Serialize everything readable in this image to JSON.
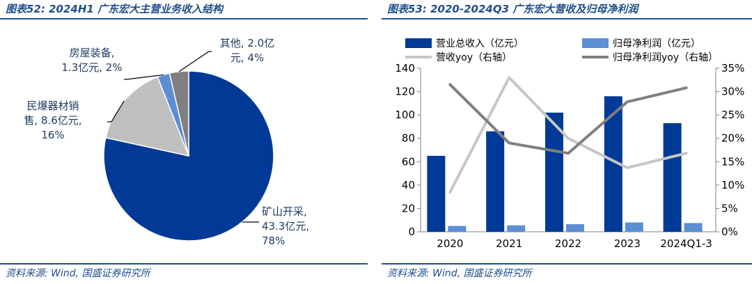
{
  "charts": {
    "left": {
      "title": "图表52: 2024H1 广东宏大主营业务收入结构",
      "source": "资料来源: Wind, 国盛证券研究所"
    },
    "right": {
      "title": "图表53: 2020-2024Q3 广东宏大营收及归母净利润",
      "source": "资料来源: Wind, 国盛证券研究所"
    }
  },
  "chart_data": [
    {
      "type": "pie",
      "title": "2024H1 广东宏大主营业务收入结构",
      "unit": "亿元",
      "slices": [
        {
          "name": "矿山开采",
          "value": 43.3,
          "percent": 78,
          "color": "#003a96",
          "label_lines": [
            "矿山开采,",
            "43.3亿元,",
            "78%"
          ]
        },
        {
          "name": "民爆器材销售",
          "value": 8.6,
          "percent": 16,
          "color": "#bfbfbf",
          "label_lines": [
            "民爆器材销",
            "售, 8.6亿元,",
            "16%"
          ]
        },
        {
          "name": "房屋装备",
          "value": 1.3,
          "percent": 2,
          "color": "#5b8fd4",
          "label_lines": [
            "房屋装备,",
            "1.3亿元, 2%"
          ]
        },
        {
          "name": "其他",
          "value": 2.0,
          "percent": 4,
          "color": "#7f7f7f",
          "label_lines": [
            "其他, 2.0亿",
            "元, 4%"
          ]
        }
      ]
    },
    {
      "type": "bar+line",
      "title": "2020-2024Q3 广东宏大营收及归母净利润",
      "categories": [
        "2020",
        "2021",
        "2022",
        "2023",
        "2024Q1-3"
      ],
      "y_left": {
        "min": 0,
        "max": 140,
        "ticks": [
          "0",
          "20",
          "40",
          "60",
          "80",
          "100",
          "120",
          "140"
        ]
      },
      "y_right": {
        "min": 0,
        "max": 0.35,
        "ticks": [
          "0%",
          "5%",
          "10%",
          "15%",
          "20%",
          "25%",
          "30%",
          "35%"
        ]
      },
      "series": [
        {
          "name": "营业总收入（亿元）",
          "type": "bar",
          "axis": "left",
          "color": "#003a96",
          "values": [
            65,
            86,
            102,
            116,
            93
          ]
        },
        {
          "name": "归母净利润（亿元）",
          "type": "bar",
          "axis": "left",
          "color": "#5b8fd4",
          "values": [
            5,
            5.5,
            6.5,
            8,
            7.5
          ]
        },
        {
          "name": "营收yoy（右轴）",
          "type": "line",
          "axis": "right",
          "color": "#c6c6c6",
          "values": [
            0.085,
            0.33,
            0.2,
            0.137,
            0.168
          ]
        },
        {
          "name": "归母净利润yoy（右轴）",
          "type": "line",
          "axis": "right",
          "color": "#7f7f7f",
          "values": [
            0.315,
            0.19,
            0.168,
            0.278,
            0.308
          ]
        }
      ],
      "legend_placement": "top",
      "grid": false
    }
  ]
}
